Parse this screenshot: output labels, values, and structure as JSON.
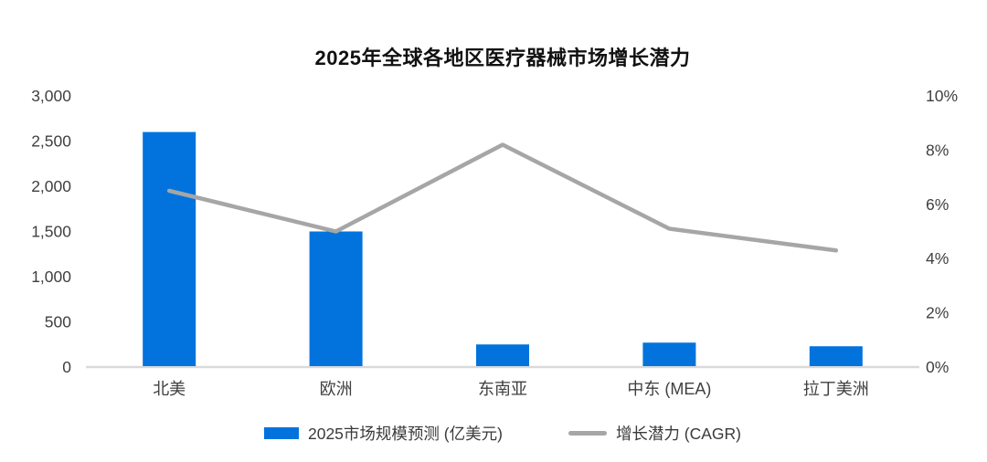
{
  "page": {
    "background": "#ffffff"
  },
  "chart_data": {
    "type": "bar",
    "title": "2025年全球各地区医疗器械市场增长潜力",
    "categories": [
      "北美",
      "欧洲",
      "东南亚",
      "中东 (MEA)",
      "拉丁美洲"
    ],
    "series": [
      {
        "name": "2025市场规模预测 (亿美元)",
        "type": "bar",
        "axis": "left",
        "color": "#0273DC",
        "values": [
          2600,
          1500,
          250,
          270,
          230
        ]
      },
      {
        "name": "增长潜力 (CAGR)",
        "type": "line",
        "axis": "right",
        "color": "#A6A6A6",
        "values": [
          6.5,
          5.0,
          8.2,
          5.1,
          4.3
        ],
        "unit": "%"
      }
    ],
    "left_axis": {
      "min": 0,
      "max": 3000,
      "tick_step": 500,
      "tick_labels": [
        "0",
        "500",
        "1,000",
        "1,500",
        "2,000",
        "2,500",
        "3,000"
      ]
    },
    "right_axis": {
      "min": 0,
      "max": 10,
      "tick_step": 2,
      "tick_labels": [
        "0%",
        "2%",
        "4%",
        "6%",
        "8%",
        "10%"
      ]
    },
    "legend_position": "bottom",
    "grid": false,
    "colors": {
      "axis_line": "#D9D9D9",
      "tick_text": "#404040",
      "title_text": "#111111"
    }
  }
}
